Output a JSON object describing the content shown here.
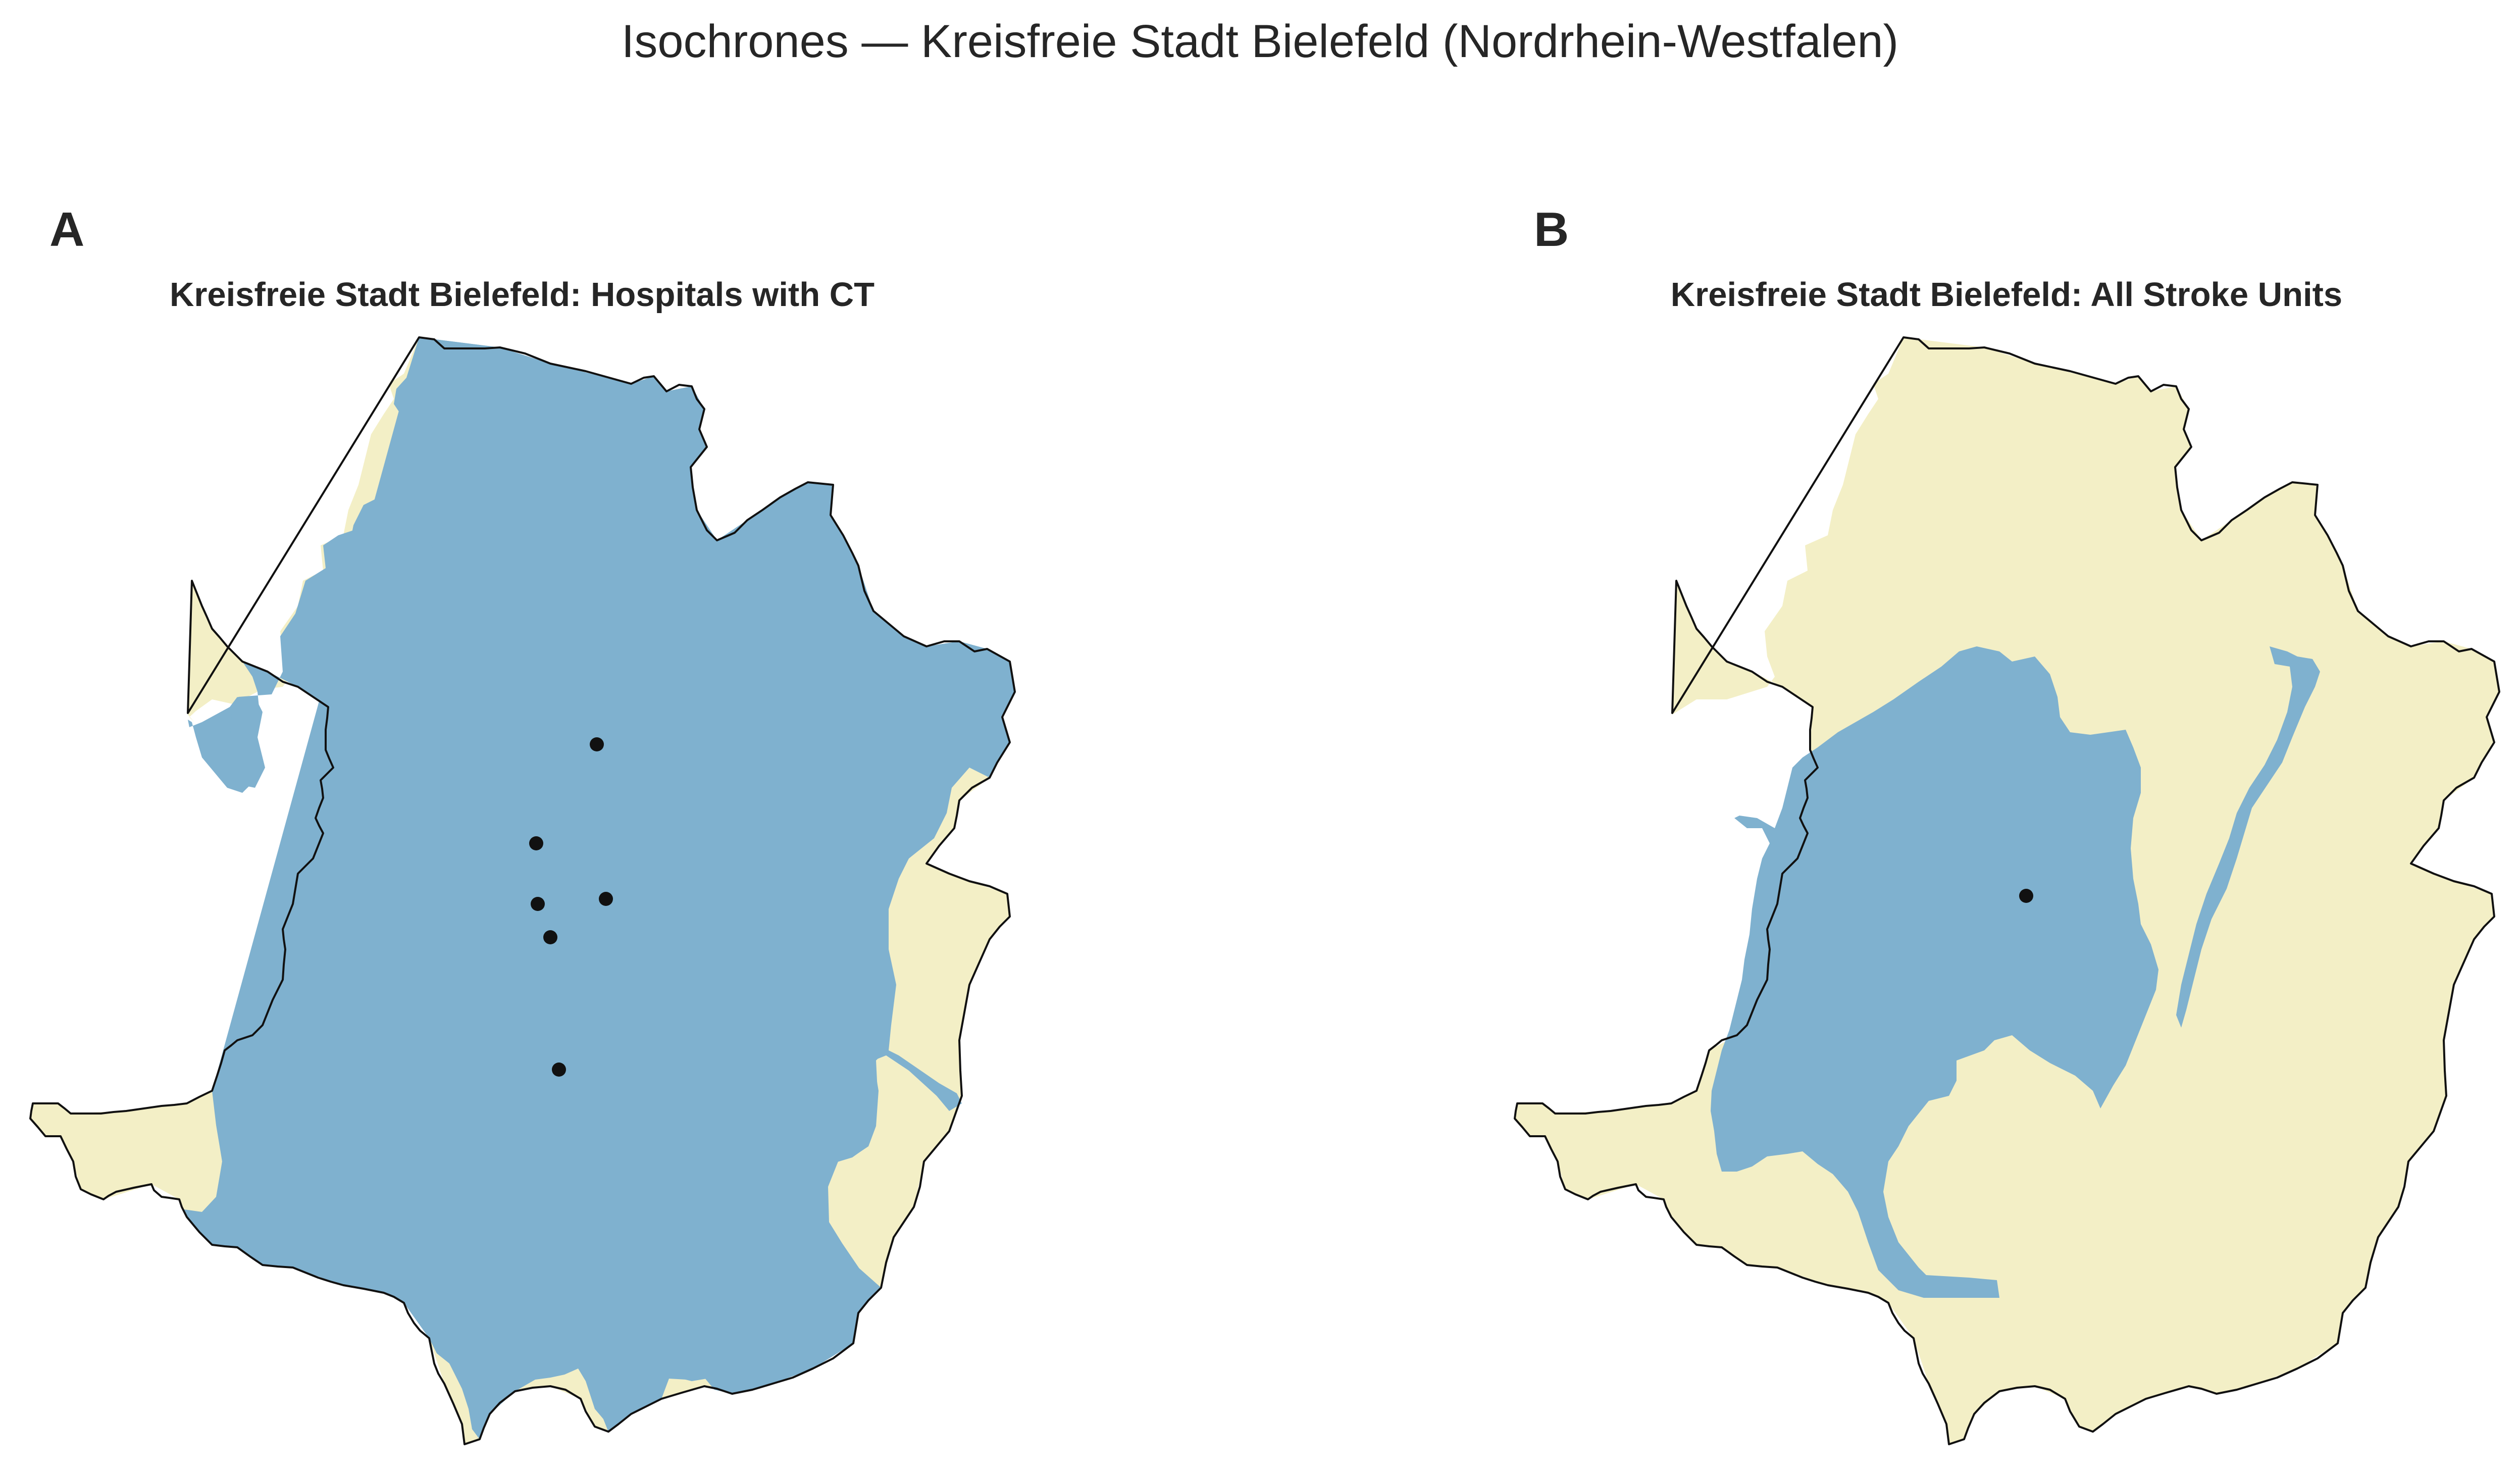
{
  "title": "Isochrones — Kreisfreie Stadt Bielefeld (Nordrhein-Westfalen)",
  "colors": {
    "within_isochrone": "#7fb1cf",
    "outside_isochrone": "#f3efc6",
    "boundary": "#111111",
    "facility_marker": "#111111"
  },
  "panels": [
    {
      "letter": "A",
      "title": "Kreisfreie Stadt Bielefeld: Hospitals with CT",
      "facility_count": 6
    },
    {
      "letter": "B",
      "title": "Kreisfreie Stadt Bielefeld: All Stroke Units",
      "facility_count": 1
    }
  ]
}
